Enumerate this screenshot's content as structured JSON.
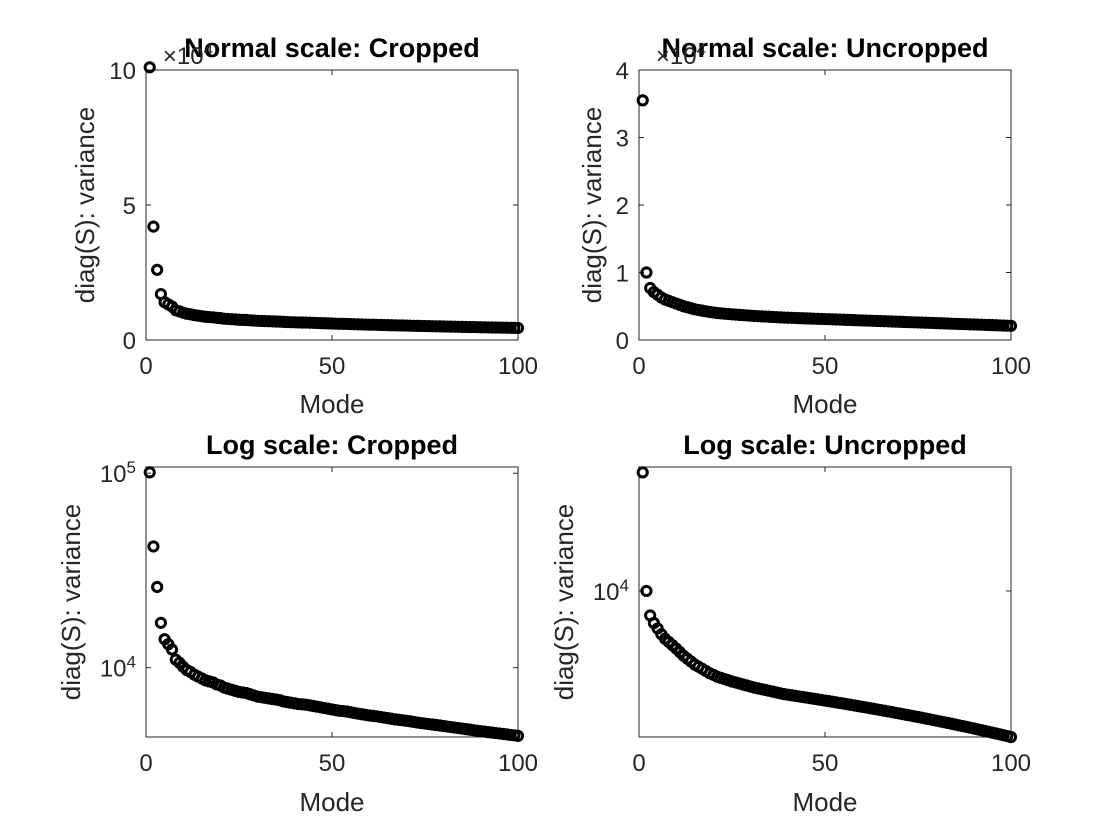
{
  "chart_data": [
    {
      "type": "scatter",
      "title": "Normal scale: Cropped",
      "xlabel": "Mode",
      "ylabel": "diag(S): variance",
      "xlim": [
        0,
        100
      ],
      "ylim": [
        0,
        100000
      ],
      "yscale": "linear",
      "exponent_label": "×10^4",
      "xticks": [
        0,
        50,
        100
      ],
      "xtick_labels": [
        "0",
        "50",
        "100"
      ],
      "yticks": [
        0,
        50000,
        100000
      ],
      "ytick_labels": [
        "0",
        "5",
        "10"
      ],
      "marker": "circle",
      "color": "#000000",
      "grid": false,
      "series": [
        {
          "x": [
            1,
            2,
            3,
            4,
            5,
            6,
            7,
            8,
            9,
            10,
            11,
            12,
            13,
            14,
            15,
            16,
            17,
            18,
            19,
            20,
            21,
            22,
            23,
            24,
            25,
            26,
            27,
            28,
            29,
            30,
            31,
            32,
            33,
            34,
            35,
            36,
            37,
            38,
            39,
            40,
            41,
            42,
            43,
            44,
            45,
            46,
            47,
            48,
            49,
            50,
            51,
            52,
            53,
            54,
            55,
            56,
            57,
            58,
            59,
            60,
            61,
            62,
            63,
            64,
            65,
            66,
            67,
            68,
            69,
            70,
            71,
            72,
            73,
            74,
            75,
            76,
            77,
            78,
            79,
            80,
            81,
            82,
            83,
            84,
            85,
            86,
            87,
            88,
            89,
            90,
            91,
            92,
            93,
            94,
            95,
            96,
            97,
            98,
            99,
            100
          ],
          "y": [
            101000,
            42000,
            26000,
            17000,
            14000,
            13200,
            12400,
            11000,
            10600,
            10100,
            9700,
            9500,
            9200,
            9000,
            8800,
            8600,
            8500,
            8400,
            8200,
            8100,
            7900,
            7800,
            7700,
            7600,
            7500,
            7450,
            7400,
            7300,
            7200,
            7100,
            7050,
            7000,
            6950,
            6900,
            6850,
            6800,
            6700,
            6650,
            6600,
            6550,
            6500,
            6480,
            6450,
            6400,
            6350,
            6300,
            6250,
            6200,
            6150,
            6100,
            6050,
            6000,
            5980,
            5950,
            5900,
            5850,
            5800,
            5760,
            5720,
            5680,
            5650,
            5620,
            5580,
            5540,
            5500,
            5460,
            5420,
            5390,
            5360,
            5330,
            5300,
            5260,
            5220,
            5190,
            5160,
            5130,
            5100,
            5070,
            5040,
            5010,
            4980,
            4950,
            4920,
            4890,
            4860,
            4830,
            4800,
            4770,
            4740,
            4710,
            4690,
            4660,
            4640,
            4610,
            4590,
            4560,
            4540,
            4510,
            4490,
            4460
          ]
        }
      ]
    },
    {
      "type": "scatter",
      "title": "Normal scale: Uncropped",
      "xlabel": "Mode",
      "ylabel": "diag(S): variance",
      "xlim": [
        0,
        100
      ],
      "ylim": [
        0,
        40000
      ],
      "yscale": "linear",
      "exponent_label": "×10^4",
      "xticks": [
        0,
        50,
        100
      ],
      "xtick_labels": [
        "0",
        "50",
        "100"
      ],
      "yticks": [
        0,
        10000,
        20000,
        30000,
        40000
      ],
      "ytick_labels": [
        "0",
        "1",
        "2",
        "3",
        "4"
      ],
      "marker": "circle",
      "color": "#000000",
      "grid": false,
      "series": [
        {
          "x": [
            1,
            2,
            3,
            4,
            5,
            6,
            7,
            8,
            9,
            10,
            11,
            12,
            13,
            14,
            15,
            16,
            17,
            18,
            19,
            20,
            21,
            22,
            23,
            24,
            25,
            26,
            27,
            28,
            29,
            30,
            31,
            32,
            33,
            34,
            35,
            36,
            37,
            38,
            39,
            40,
            41,
            42,
            43,
            44,
            45,
            46,
            47,
            48,
            49,
            50,
            51,
            52,
            53,
            54,
            55,
            56,
            57,
            58,
            59,
            60,
            61,
            62,
            63,
            64,
            65,
            66,
            67,
            68,
            69,
            70,
            71,
            72,
            73,
            74,
            75,
            76,
            77,
            78,
            79,
            80,
            81,
            82,
            83,
            84,
            85,
            86,
            87,
            88,
            89,
            90,
            91,
            92,
            93,
            94,
            95,
            96,
            97,
            98,
            99,
            100
          ],
          "y": [
            35500,
            10000,
            7700,
            7100,
            6700,
            6300,
            6000,
            5800,
            5600,
            5400,
            5200,
            5000,
            4850,
            4700,
            4550,
            4450,
            4350,
            4250,
            4150,
            4080,
            4000,
            3950,
            3900,
            3850,
            3800,
            3760,
            3720,
            3680,
            3640,
            3600,
            3560,
            3530,
            3500,
            3470,
            3440,
            3410,
            3380,
            3350,
            3320,
            3300,
            3280,
            3260,
            3240,
            3220,
            3200,
            3180,
            3160,
            3140,
            3120,
            3100,
            3080,
            3060,
            3040,
            3020,
            3000,
            2980,
            2960,
            2940,
            2920,
            2900,
            2880,
            2860,
            2840,
            2820,
            2800,
            2780,
            2760,
            2740,
            2720,
            2700,
            2680,
            2660,
            2640,
            2620,
            2600,
            2580,
            2560,
            2540,
            2520,
            2500,
            2480,
            2460,
            2440,
            2420,
            2400,
            2380,
            2360,
            2340,
            2320,
            2300,
            2280,
            2260,
            2240,
            2220,
            2200,
            2180,
            2160,
            2140,
            2120,
            2100
          ]
        }
      ]
    },
    {
      "type": "scatter",
      "title": "Log scale: Cropped",
      "xlabel": "Mode",
      "ylabel": "diag(S): variance",
      "xlim": [
        0,
        100
      ],
      "ylim": [
        4400,
        101000
      ],
      "yscale": "log",
      "xticks": [
        0,
        50,
        100
      ],
      "xtick_labels": [
        "0",
        "50",
        "100"
      ],
      "yticks": [
        10000,
        100000
      ],
      "ytick_labels": [
        "10^4",
        "10^5"
      ],
      "marker": "circle",
      "color": "#000000",
      "grid": false,
      "series": [
        {
          "x": [
            1,
            2,
            3,
            4,
            5,
            6,
            7,
            8,
            9,
            10,
            11,
            12,
            13,
            14,
            15,
            16,
            17,
            18,
            19,
            20,
            21,
            22,
            23,
            24,
            25,
            26,
            27,
            28,
            29,
            30,
            31,
            32,
            33,
            34,
            35,
            36,
            37,
            38,
            39,
            40,
            41,
            42,
            43,
            44,
            45,
            46,
            47,
            48,
            49,
            50,
            51,
            52,
            53,
            54,
            55,
            56,
            57,
            58,
            59,
            60,
            61,
            62,
            63,
            64,
            65,
            66,
            67,
            68,
            69,
            70,
            71,
            72,
            73,
            74,
            75,
            76,
            77,
            78,
            79,
            80,
            81,
            82,
            83,
            84,
            85,
            86,
            87,
            88,
            89,
            90,
            91,
            92,
            93,
            94,
            95,
            96,
            97,
            98,
            99,
            100
          ],
          "y": [
            101000,
            42000,
            26000,
            17000,
            14000,
            13200,
            12400,
            11000,
            10600,
            10100,
            9700,
            9500,
            9200,
            9000,
            8800,
            8600,
            8500,
            8400,
            8200,
            8100,
            7900,
            7800,
            7700,
            7600,
            7500,
            7450,
            7400,
            7300,
            7200,
            7100,
            7050,
            7000,
            6950,
            6900,
            6850,
            6800,
            6700,
            6650,
            6600,
            6550,
            6500,
            6480,
            6450,
            6400,
            6350,
            6300,
            6250,
            6200,
            6150,
            6100,
            6050,
            6000,
            5980,
            5950,
            5900,
            5850,
            5800,
            5760,
            5720,
            5680,
            5650,
            5620,
            5580,
            5540,
            5500,
            5460,
            5420,
            5390,
            5360,
            5330,
            5300,
            5260,
            5220,
            5190,
            5160,
            5130,
            5100,
            5070,
            5040,
            5010,
            4980,
            4950,
            4920,
            4890,
            4860,
            4830,
            4800,
            4770,
            4740,
            4710,
            4690,
            4660,
            4640,
            4610,
            4590,
            4560,
            4540,
            4510,
            4490,
            4460
          ]
        }
      ]
    },
    {
      "type": "scatter",
      "title": "Log scale: Uncropped",
      "xlabel": "Mode",
      "ylabel": "diag(S): variance",
      "xlim": [
        0,
        100
      ],
      "ylim": [
        2100,
        35500
      ],
      "yscale": "log",
      "xticks": [
        0,
        50,
        100
      ],
      "xtick_labels": [
        "0",
        "50",
        "100"
      ],
      "yticks": [
        10000
      ],
      "ytick_labels": [
        "10^4"
      ],
      "marker": "circle",
      "color": "#000000",
      "grid": false,
      "series": [
        {
          "x": [
            1,
            2,
            3,
            4,
            5,
            6,
            7,
            8,
            9,
            10,
            11,
            12,
            13,
            14,
            15,
            16,
            17,
            18,
            19,
            20,
            21,
            22,
            23,
            24,
            25,
            26,
            27,
            28,
            29,
            30,
            31,
            32,
            33,
            34,
            35,
            36,
            37,
            38,
            39,
            40,
            41,
            42,
            43,
            44,
            45,
            46,
            47,
            48,
            49,
            50,
            51,
            52,
            53,
            54,
            55,
            56,
            57,
            58,
            59,
            60,
            61,
            62,
            63,
            64,
            65,
            66,
            67,
            68,
            69,
            70,
            71,
            72,
            73,
            74,
            75,
            76,
            77,
            78,
            79,
            80,
            81,
            82,
            83,
            84,
            85,
            86,
            87,
            88,
            89,
            90,
            91,
            92,
            93,
            94,
            95,
            96,
            97,
            98,
            99,
            100
          ],
          "y": [
            35500,
            10000,
            7700,
            7100,
            6700,
            6300,
            6000,
            5800,
            5600,
            5400,
            5200,
            5000,
            4850,
            4700,
            4550,
            4450,
            4350,
            4250,
            4150,
            4080,
            4000,
            3950,
            3900,
            3850,
            3800,
            3760,
            3720,
            3680,
            3640,
            3600,
            3560,
            3530,
            3500,
            3470,
            3440,
            3410,
            3380,
            3350,
            3320,
            3300,
            3280,
            3260,
            3240,
            3220,
            3200,
            3180,
            3160,
            3140,
            3120,
            3100,
            3080,
            3060,
            3040,
            3020,
            3000,
            2980,
            2960,
            2940,
            2920,
            2900,
            2880,
            2860,
            2840,
            2820,
            2800,
            2780,
            2760,
            2740,
            2720,
            2700,
            2680,
            2660,
            2640,
            2620,
            2600,
            2580,
            2560,
            2540,
            2520,
            2500,
            2480,
            2460,
            2440,
            2420,
            2400,
            2380,
            2360,
            2340,
            2320,
            2300,
            2280,
            2260,
            2240,
            2220,
            2200,
            2180,
            2160,
            2140,
            2120,
            2100
          ]
        }
      ]
    }
  ]
}
